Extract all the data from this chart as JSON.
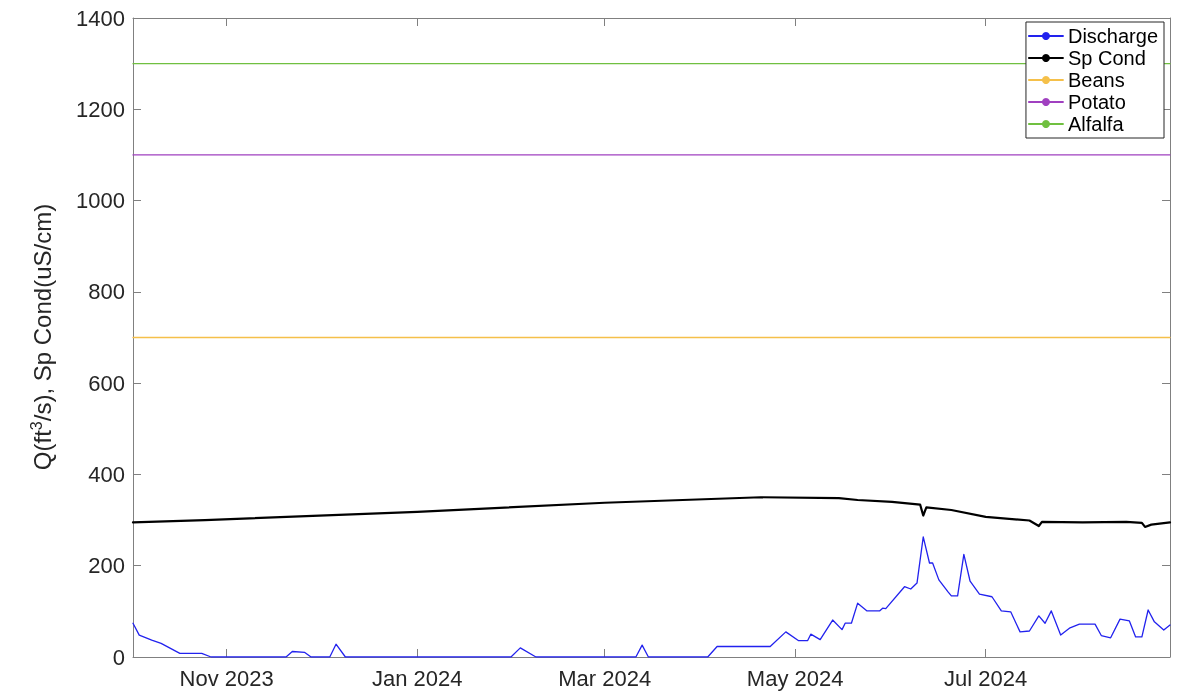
{
  "chart_data": {
    "type": "line",
    "ylabel": "Q(ft$^{3}$/s), Sp Cond(uS/cm)",
    "xlim": [
      "2023-10-02",
      "2024-08-29"
    ],
    "xticks": [
      {
        "value": "2023-11-01",
        "label": "Nov 2023"
      },
      {
        "value": "2024-01-01",
        "label": "Jan 2024"
      },
      {
        "value": "2024-03-01",
        "label": "Mar 2024"
      },
      {
        "value": "2024-05-01",
        "label": "May 2024"
      },
      {
        "value": "2024-07-01",
        "label": "Jul 2024"
      }
    ],
    "ylim": [
      0,
      1400
    ],
    "yticks": [
      0,
      200,
      400,
      600,
      800,
      1000,
      1200,
      1400
    ],
    "grid": false,
    "legend": "top right",
    "marker": "none",
    "line_style": "solid",
    "series": [
      {
        "name": "Discharge",
        "color": "#2222ee",
        "x": [
          "2023-10-02",
          "2023-10-04",
          "2023-10-08",
          "2023-10-11",
          "2023-10-17",
          "2023-10-24",
          "2023-10-27",
          "2023-11-20",
          "2023-11-22",
          "2023-11-26",
          "2023-11-28",
          "2023-12-04",
          "2023-12-06",
          "2023-12-09",
          "2024-01-31",
          "2024-02-03",
          "2024-02-08",
          "2024-03-11",
          "2024-03-13",
          "2024-03-15",
          "2024-04-03",
          "2024-04-06",
          "2024-04-23",
          "2024-04-28",
          "2024-05-02",
          "2024-05-05",
          "2024-05-06",
          "2024-05-09",
          "2024-05-13",
          "2024-05-16",
          "2024-05-17",
          "2024-05-19",
          "2024-05-21",
          "2024-05-24",
          "2024-05-28",
          "2024-05-29",
          "2024-05-30",
          "2024-06-05",
          "2024-06-07",
          "2024-06-09",
          "2024-06-11",
          "2024-06-13",
          "2024-06-14",
          "2024-06-16",
          "2024-06-19",
          "2024-06-20",
          "2024-06-22",
          "2024-06-24",
          "2024-06-26",
          "2024-06-29",
          "2024-07-03",
          "2024-07-06",
          "2024-07-09",
          "2024-07-12",
          "2024-07-15",
          "2024-07-18",
          "2024-07-20",
          "2024-07-22",
          "2024-07-25",
          "2024-07-28",
          "2024-07-31",
          "2024-08-05",
          "2024-08-07",
          "2024-08-10",
          "2024-08-13",
          "2024-08-16",
          "2024-08-18",
          "2024-08-20",
          "2024-08-22",
          "2024-08-24",
          "2024-08-27",
          "2024-08-29"
        ],
        "values": [
          74,
          48,
          37,
          30,
          8,
          8,
          0,
          0,
          12,
          10,
          0,
          0,
          28,
          0,
          0,
          20,
          0,
          0,
          26,
          0,
          0,
          23,
          23,
          55,
          36,
          36,
          50,
          38,
          81,
          60,
          74,
          74,
          118,
          101,
          101,
          107,
          106,
          154,
          149,
          162,
          263,
          206,
          206,
          169,
          142,
          134,
          134,
          225,
          166,
          138,
          132,
          101,
          99,
          55,
          57,
          90,
          74,
          101,
          48,
          64,
          72,
          72,
          47,
          42,
          83,
          79,
          44,
          44,
          103,
          77,
          59,
          70
        ]
      },
      {
        "name": "Sp Cond",
        "color": "#000000",
        "x": [
          "2023-10-02",
          "2023-10-25",
          "2024-01-01",
          "2024-03-01",
          "2024-04-20",
          "2024-05-15",
          "2024-05-21",
          "2024-06-01",
          "2024-06-10",
          "2024-06-11",
          "2024-06-12",
          "2024-06-20",
          "2024-07-01",
          "2024-07-15",
          "2024-07-18",
          "2024-07-19",
          "2024-08-01",
          "2024-08-15",
          "2024-08-20",
          "2024-08-21",
          "2024-08-23",
          "2024-08-29"
        ],
        "values": [
          295,
          300,
          318,
          338,
          350,
          348,
          344,
          340,
          334,
          310,
          328,
          322,
          307,
          299,
          287,
          296,
          295,
          296,
          294,
          285,
          290,
          295
        ]
      },
      {
        "name": "Beans",
        "color": "#f5c04a",
        "x": [
          "2023-10-02",
          "2024-08-29"
        ],
        "values": [
          700,
          700
        ]
      },
      {
        "name": "Potato",
        "color": "#a040c0",
        "x": [
          "2023-10-02",
          "2024-08-29"
        ],
        "values": [
          1100,
          1100
        ]
      },
      {
        "name": "Alfalfa",
        "color": "#70c040",
        "x": [
          "2023-10-02",
          "2024-08-29"
        ],
        "values": [
          1300,
          1300
        ]
      }
    ]
  }
}
